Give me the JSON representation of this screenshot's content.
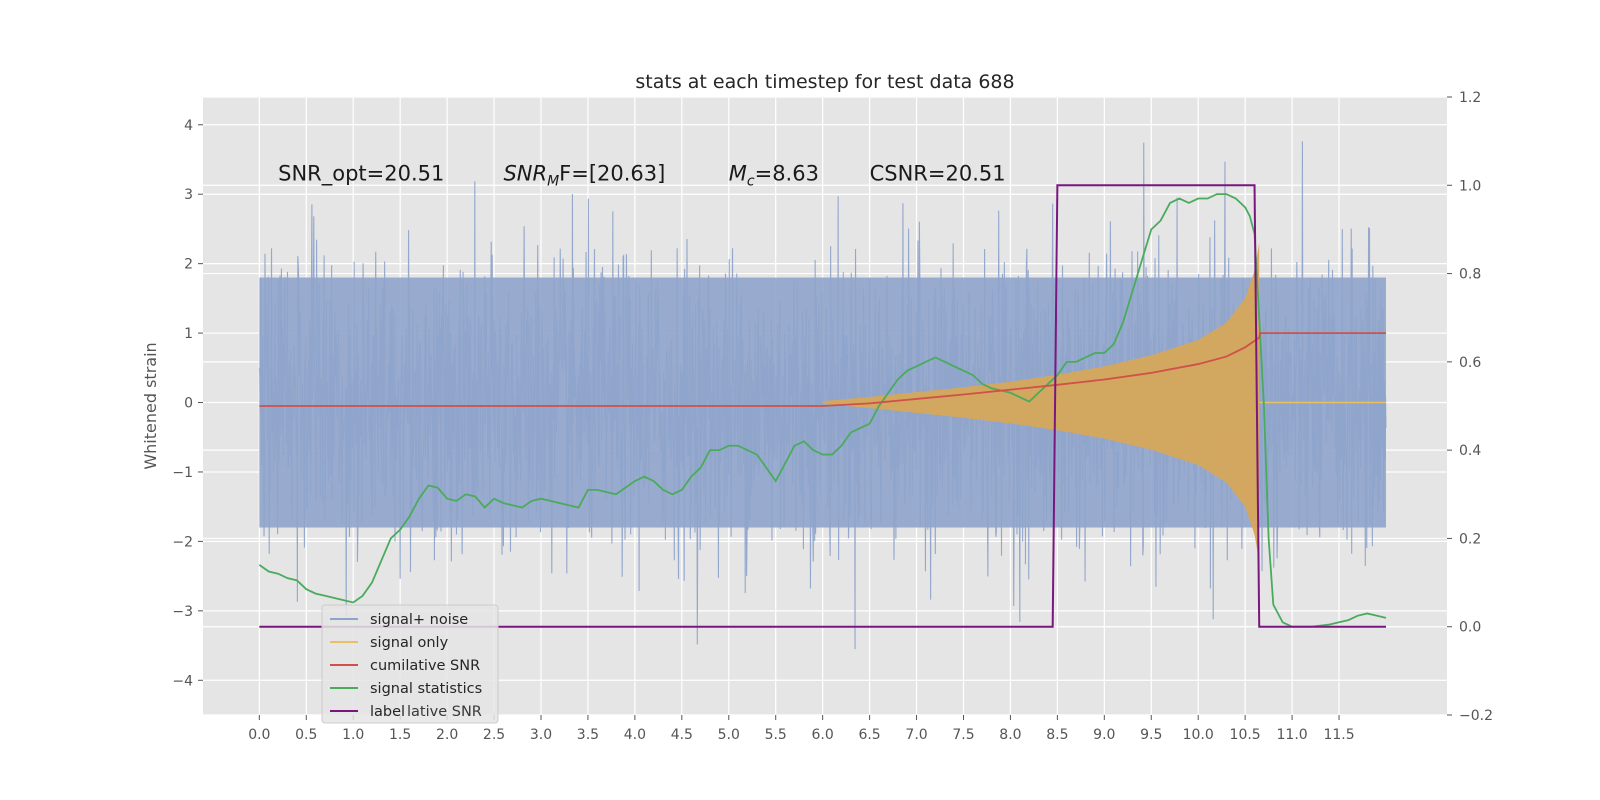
{
  "chart_data": {
    "type": "line",
    "title": "stats at each timestep for test data 688",
    "ylabel": "Whitened strain",
    "xlabel": "",
    "xlim": [
      -0.6,
      12.65
    ],
    "ylim": [
      -4.5,
      4.4
    ],
    "y2lim": [
      -0.2,
      1.2
    ],
    "grid": true,
    "x_ticks": [
      "0.0",
      "0.5",
      "1.0",
      "1.5",
      "2.0",
      "2.5",
      "3.0",
      "3.5",
      "4.0",
      "4.5",
      "5.0",
      "5.5",
      "6.0",
      "6.5",
      "7.0",
      "7.5",
      "8.0",
      "8.5",
      "9.0",
      "9.5",
      "10.0",
      "10.5",
      "11.0",
      "11.5"
    ],
    "y_ticks": [
      "4",
      "3",
      "2",
      "1",
      "0",
      "−1",
      "−2",
      "−3",
      "−4"
    ],
    "y2_ticks": [
      "1.2",
      "1.0",
      "0.8",
      "0.6",
      "0.4",
      "0.2",
      "0.0",
      "−0.2"
    ],
    "annotations": [
      {
        "text": "SNR_opt=20.51",
        "x": 0.2,
        "y": 3.2
      },
      {
        "text": "SNR",
        "sub": "M",
        "rest": "F=[20.63]",
        "x": 2.6,
        "y": 3.2
      },
      {
        "text": "M",
        "sub": "c",
        "rest": "=8.63",
        "x": 5.0,
        "y": 3.2
      },
      {
        "text": "CSNR=20.51",
        "x": 6.5,
        "y": 3.2
      }
    ],
    "legend": {
      "position": "lower-left",
      "entries": [
        "signal+ noise",
        "signal only",
        "cumilative SNR",
        "signal statistics",
        "label"
      ],
      "overlap_text": "lative SNR"
    },
    "colors": {
      "noise": "#8fa4cb",
      "signal": "#d6a65a",
      "signal_line": "#e8c060",
      "cumulative": "#d0504a",
      "statistics": "#4aab5c",
      "label": "#7a177f",
      "background": "#e5e5e5",
      "grid": "#ffffff"
    },
    "series": [
      {
        "name": "signal+ noise",
        "axis": "left",
        "description": "whitened strain samples, approx. Gaussian noise (std ~1) over 0.0–12.0",
        "x_range": [
          0.0,
          12.0
        ],
        "envelope_upper": 2.5,
        "envelope_lower": -2.5,
        "max": 4.0,
        "min": -4.1
      },
      {
        "name": "signal only",
        "axis": "left",
        "description": "chirp envelope growing from 6.0 to merger at 10.65",
        "x": [
          6.0,
          6.5,
          7.0,
          7.5,
          8.0,
          8.5,
          9.0,
          9.5,
          10.0,
          10.3,
          10.5,
          10.6,
          10.65
        ],
        "amplitude": [
          0.02,
          0.08,
          0.15,
          0.22,
          0.3,
          0.4,
          0.52,
          0.68,
          0.9,
          1.15,
          1.5,
          1.9,
          2.3
        ]
      },
      {
        "name": "cumilative SNR",
        "axis": "right",
        "x": [
          0.0,
          6.0,
          6.5,
          7.0,
          7.5,
          8.0,
          8.5,
          9.0,
          9.5,
          10.0,
          10.3,
          10.5,
          10.65,
          10.66,
          12.0
        ],
        "y": [
          0.5,
          0.5,
          0.506,
          0.516,
          0.526,
          0.537,
          0.548,
          0.56,
          0.575,
          0.595,
          0.612,
          0.633,
          0.655,
          0.665,
          0.665
        ]
      },
      {
        "name": "signal statistics",
        "axis": "right",
        "x": [
          0.0,
          0.1,
          0.2,
          0.3,
          0.4,
          0.5,
          0.6,
          0.7,
          0.8,
          0.9,
          1.0,
          1.1,
          1.2,
          1.3,
          1.4,
          1.5,
          1.6,
          1.7,
          1.8,
          1.9,
          2.0,
          2.1,
          2.2,
          2.3,
          2.4,
          2.5,
          2.6,
          2.7,
          2.8,
          2.9,
          3.0,
          3.1,
          3.2,
          3.3,
          3.4,
          3.5,
          3.6,
          3.7,
          3.8,
          3.9,
          4.0,
          4.1,
          4.2,
          4.3,
          4.4,
          4.5,
          4.6,
          4.7,
          4.8,
          4.9,
          5.0,
          5.1,
          5.2,
          5.3,
          5.4,
          5.5,
          5.6,
          5.7,
          5.8,
          5.9,
          6.0,
          6.1,
          6.2,
          6.3,
          6.4,
          6.5,
          6.6,
          6.7,
          6.8,
          6.9,
          7.0,
          7.1,
          7.2,
          7.3,
          7.4,
          7.5,
          7.6,
          7.7,
          7.8,
          7.9,
          8.0,
          8.1,
          8.2,
          8.3,
          8.4,
          8.5,
          8.6,
          8.7,
          8.8,
          8.9,
          9.0,
          9.1,
          9.2,
          9.3,
          9.4,
          9.5,
          9.6,
          9.7,
          9.8,
          9.9,
          10.0,
          10.1,
          10.2,
          10.3,
          10.4,
          10.5,
          10.55,
          10.6,
          10.65,
          10.7,
          10.75,
          10.8,
          10.9,
          11.0,
          11.2,
          11.4,
          11.5,
          11.6,
          11.7,
          11.8,
          11.9,
          12.0
        ],
        "y": [
          0.14,
          0.125,
          0.12,
          0.11,
          0.105,
          0.085,
          0.075,
          0.07,
          0.065,
          0.06,
          0.055,
          0.07,
          0.1,
          0.15,
          0.2,
          0.22,
          0.25,
          0.29,
          0.32,
          0.315,
          0.29,
          0.285,
          0.3,
          0.295,
          0.27,
          0.29,
          0.28,
          0.275,
          0.27,
          0.285,
          0.29,
          0.285,
          0.28,
          0.275,
          0.27,
          0.31,
          0.31,
          0.305,
          0.3,
          0.315,
          0.33,
          0.34,
          0.33,
          0.31,
          0.3,
          0.31,
          0.34,
          0.36,
          0.4,
          0.4,
          0.41,
          0.41,
          0.4,
          0.39,
          0.36,
          0.33,
          0.37,
          0.41,
          0.42,
          0.4,
          0.39,
          0.39,
          0.41,
          0.44,
          0.45,
          0.46,
          0.5,
          0.53,
          0.56,
          0.58,
          0.59,
          0.6,
          0.61,
          0.6,
          0.59,
          0.58,
          0.57,
          0.55,
          0.54,
          0.535,
          0.53,
          0.52,
          0.51,
          0.53,
          0.55,
          0.57,
          0.6,
          0.6,
          0.61,
          0.62,
          0.62,
          0.64,
          0.69,
          0.76,
          0.83,
          0.9,
          0.92,
          0.96,
          0.97,
          0.96,
          0.97,
          0.97,
          0.98,
          0.98,
          0.97,
          0.95,
          0.93,
          0.89,
          0.7,
          0.5,
          0.2,
          0.05,
          0.01,
          0.0,
          0.0,
          0.005,
          0.01,
          0.015,
          0.025,
          0.03,
          0.025,
          0.02
        ]
      },
      {
        "name": "label",
        "axis": "right",
        "x": [
          0.0,
          8.45,
          8.5,
          10.6,
          10.65,
          12.0
        ],
        "y": [
          0.0,
          0.0,
          1.0,
          1.0,
          0.0,
          0.0
        ]
      }
    ]
  }
}
